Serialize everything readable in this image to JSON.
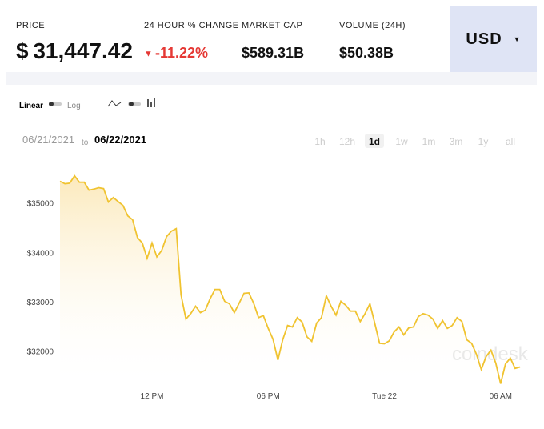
{
  "header": {
    "price_label": "PRICE",
    "price": "$ 31,447.42",
    "change_label": "24 HOUR % CHANGE",
    "change": "-11.22%",
    "cap_label": "MARKET CAP",
    "cap": "$589.31B",
    "volume_label": "VOLUME (24H)",
    "volume": "$50.38B",
    "currency": "USD"
  },
  "controls": {
    "linear": "Linear",
    "log": "Log",
    "date_from": "06/21/2021",
    "to": "to",
    "date_to": "06/22/2021",
    "ranges": [
      "1h",
      "12h",
      "1d",
      "1w",
      "1m",
      "3m",
      "1y",
      "all"
    ],
    "selected_range": "1d",
    "watermark": "coindesk"
  },
  "chart_data": {
    "type": "line",
    "color": "#f0c330",
    "categories": [
      null,
      null,
      null,
      null,
      null,
      null,
      null,
      null,
      null,
      null,
      null,
      null,
      null,
      null,
      null,
      null,
      null,
      null,
      null,
      "12 PM",
      null,
      null,
      null,
      null,
      null,
      null,
      null,
      null,
      null,
      null,
      null,
      null,
      null,
      null,
      null,
      null,
      null,
      null,
      null,
      null,
      null,
      null,
      null,
      "06 PM",
      null,
      null,
      null,
      null,
      null,
      null,
      null,
      null,
      null,
      null,
      null,
      null,
      null,
      null,
      null,
      null,
      null,
      null,
      null,
      null,
      null,
      null,
      null,
      "Tue 22",
      null,
      null,
      null,
      null,
      null,
      null,
      null,
      null,
      null,
      null,
      null,
      null,
      null,
      null,
      null,
      null,
      null,
      null,
      null,
      null,
      null,
      null,
      null,
      "06 AM",
      null,
      null,
      null,
      null
    ],
    "values": [
      35440,
      35390,
      35400,
      35550,
      35420,
      35420,
      35260,
      35280,
      35310,
      35290,
      35020,
      35110,
      35030,
      34950,
      34740,
      34660,
      34300,
      34190,
      33880,
      34190,
      33910,
      34040,
      34320,
      34430,
      34480,
      33140,
      32650,
      32760,
      32910,
      32780,
      32830,
      33060,
      33250,
      33250,
      33010,
      32960,
      32780,
      32970,
      33170,
      33180,
      32970,
      32680,
      32720,
      32460,
      32240,
      31820,
      32230,
      32520,
      32490,
      32680,
      32590,
      32290,
      32200,
      32570,
      32680,
      33120,
      32910,
      32730,
      33010,
      32930,
      32810,
      32810,
      32600,
      32760,
      32960,
      32570,
      32160,
      32150,
      32210,
      32390,
      32490,
      32330,
      32470,
      32490,
      32700,
      32760,
      32730,
      32650,
      32460,
      32620,
      32460,
      32520,
      32680,
      32600,
      32230,
      32160,
      31940,
      31630,
      31890,
      32020,
      31760,
      31340,
      31740,
      31860,
      31650,
      31680
    ],
    "ylim": [
      31250,
      35950
    ],
    "yticks": [
      {
        "value": 32000,
        "label": "$32000"
      },
      {
        "value": 33000,
        "label": "$33000"
      },
      {
        "value": 34000,
        "label": "$34000"
      },
      {
        "value": 35000,
        "label": "$35000"
      }
    ]
  }
}
